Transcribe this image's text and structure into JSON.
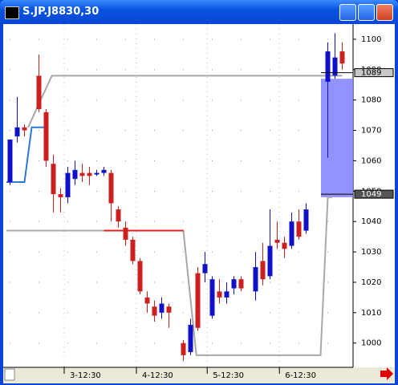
{
  "window": {
    "title": "S.JP.J8830,30"
  },
  "chart_data": {
    "type": "candlestick",
    "up_color": "#1010c8",
    "down_color": "#cc2020",
    "candles": {
      "x": [
        0,
        1,
        2,
        4,
        5,
        6,
        7,
        8,
        9,
        10,
        11,
        12,
        13,
        14,
        15,
        16,
        17,
        18,
        19,
        20,
        21,
        22,
        24,
        25,
        26,
        27,
        28,
        29,
        30,
        31,
        32,
        34,
        35,
        36,
        37,
        38,
        39,
        40,
        41,
        44,
        45,
        46
      ],
      "open": [
        1053,
        1068,
        1071,
        1088,
        1076,
        1059,
        1049,
        1048,
        1054,
        1056,
        1056,
        1056,
        1056,
        1056,
        1044,
        1038,
        1034,
        1027,
        1015,
        1012,
        1010,
        1012,
        1000,
        997,
        1023,
        1023,
        1009,
        1017,
        1015,
        1018,
        1021,
        1017,
        1027,
        1022,
        1034,
        1033,
        1032,
        1040,
        1037,
        1086,
        1088,
        1096
      ],
      "high": [
        1067,
        1081,
        1072,
        1095,
        1077,
        1062,
        1051,
        1058,
        1060,
        1059,
        1058,
        1057,
        1058,
        1057,
        1045,
        1040,
        1035,
        1028,
        1017,
        1014,
        1015,
        1013,
        1001,
        1008,
        1025,
        1030,
        1022,
        1021,
        1020,
        1022,
        1022,
        1030,
        1033,
        1044,
        1040,
        1035,
        1043,
        1044,
        1046,
        1099,
        1102,
        1099
      ],
      "low": [
        1052,
        1066,
        1068,
        1076,
        1058,
        1043,
        1043,
        1046,
        1052,
        1053,
        1052,
        1055,
        1055,
        1040,
        1038,
        1032,
        1026,
        1016,
        1010,
        1007,
        1008,
        1005,
        994,
        996,
        1004,
        1020,
        1008,
        1013,
        1013,
        1016,
        1017,
        1014,
        1019,
        1021,
        1031,
        1028,
        1031,
        1034,
        1036,
        1061,
        1087,
        1090
      ],
      "close": [
        1067,
        1071,
        1070,
        1077,
        1060,
        1049,
        1048,
        1056,
        1057,
        1055,
        1055,
        1056,
        1057,
        1046,
        1040,
        1034,
        1027,
        1017,
        1013,
        1009,
        1013,
        1010,
        996,
        1006,
        1005,
        1026,
        1021,
        1015,
        1017,
        1021,
        1018,
        1025,
        1021,
        1032,
        1033,
        1031,
        1040,
        1035,
        1044,
        1096,
        1094,
        1092
      ]
    },
    "lines": [
      {
        "color": "#a8a8a8",
        "x": [
          -0.5,
          24,
          25.8,
          43,
          44,
          44.6
        ],
        "values": [
          1037,
          1037,
          996,
          996,
          1048,
          1048
        ]
      },
      {
        "color": "#a8a8a8",
        "x": [
          2.5,
          5.8,
          43.5,
          46
        ],
        "values": [
          1071,
          1088,
          1088,
          1088
        ]
      },
      {
        "color": "#2a7ad8",
        "x": [
          -0.5,
          2,
          3,
          5
        ],
        "values": [
          1053,
          1053,
          1071,
          1071
        ]
      },
      {
        "color": "#e02020",
        "x": [
          13,
          24
        ],
        "values": [
          1037,
          1037
        ]
      }
    ],
    "zone": {
      "from": 1048,
      "to": 1087,
      "color": "#8080ff"
    },
    "markers": [
      1089,
      1049
    ],
    "xlim": [
      -0.5,
      47.5
    ],
    "xticks": [
      {
        "value": 7.5,
        "label": "3-12:30"
      },
      {
        "value": 17.5,
        "label": "4-12:30"
      },
      {
        "value": 27.3,
        "label": "5-12:30"
      },
      {
        "value": 37.3,
        "label": "6-12:30"
      }
    ],
    "ylim": [
      992,
      1105
    ],
    "yticks": [
      1000,
      1010,
      1020,
      1030,
      1040,
      1050,
      1060,
      1070,
      1080,
      1090,
      1100
    ]
  }
}
